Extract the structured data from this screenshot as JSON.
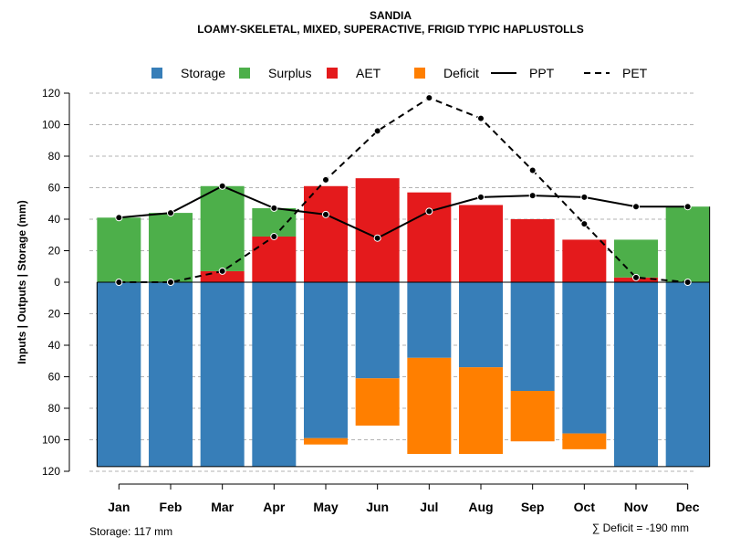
{
  "chart_data": {
    "type": "bar",
    "title": "SANDIA",
    "subtitle": "LOAMY-SKELETAL, MIXED, SUPERACTIVE, FRIGID TYPIC HAPLUSTOLLS",
    "ylabel": "Inputs | Outputs | Storage    (mm)",
    "ylim": [
      -120,
      120
    ],
    "yticks": [
      120,
      100,
      80,
      60,
      40,
      20,
      0,
      -20,
      -40,
      -60,
      -80,
      -100,
      -120
    ],
    "ytick_labels": [
      "120",
      "100",
      "80",
      "60",
      "40",
      "20",
      "0",
      "20",
      "40",
      "60",
      "80",
      "100",
      "120"
    ],
    "categories": [
      "Jan",
      "Feb",
      "Mar",
      "Apr",
      "May",
      "Jun",
      "Jul",
      "Aug",
      "Sep",
      "Oct",
      "Nov",
      "Dec"
    ],
    "legend": [
      {
        "name": "Storage",
        "kind": "box",
        "color": "#377EB8"
      },
      {
        "name": "Surplus",
        "kind": "box",
        "color": "#4DAF4A"
      },
      {
        "name": "AET",
        "kind": "box",
        "color": "#E41A1C"
      },
      {
        "name": "Deficit",
        "kind": "box",
        "color": "#FF7F00"
      },
      {
        "name": "PPT",
        "kind": "solid",
        "color": "#000000"
      },
      {
        "name": "PET",
        "kind": "dashed",
        "color": "#000000"
      }
    ],
    "series": [
      {
        "name": "AET",
        "values": [
          0,
          0,
          7,
          29,
          61,
          66,
          57,
          49,
          40,
          27,
          3,
          0
        ]
      },
      {
        "name": "Surplus",
        "values": [
          41,
          44,
          54,
          18,
          0,
          0,
          0,
          0,
          0,
          0,
          24,
          48
        ]
      },
      {
        "name": "Storage",
        "values": [
          117,
          117,
          117,
          117,
          99,
          61,
          48,
          54,
          69,
          96,
          117,
          117
        ]
      },
      {
        "name": "Deficit",
        "values": [
          0,
          0,
          0,
          0,
          4,
          30,
          61,
          55,
          32,
          10,
          0,
          0
        ]
      },
      {
        "name": "PPT",
        "values": [
          41,
          44,
          61,
          47,
          43,
          28,
          45,
          54,
          55,
          54,
          48,
          48
        ]
      },
      {
        "name": "PET",
        "values": [
          0,
          0,
          7,
          29,
          65,
          96,
          117,
          104,
          71,
          37,
          3,
          0
        ]
      }
    ],
    "storage_box_depth": 117,
    "footer_left": "Storage: 117 mm",
    "footer_right": "∑ Deficit = -190 mm"
  }
}
